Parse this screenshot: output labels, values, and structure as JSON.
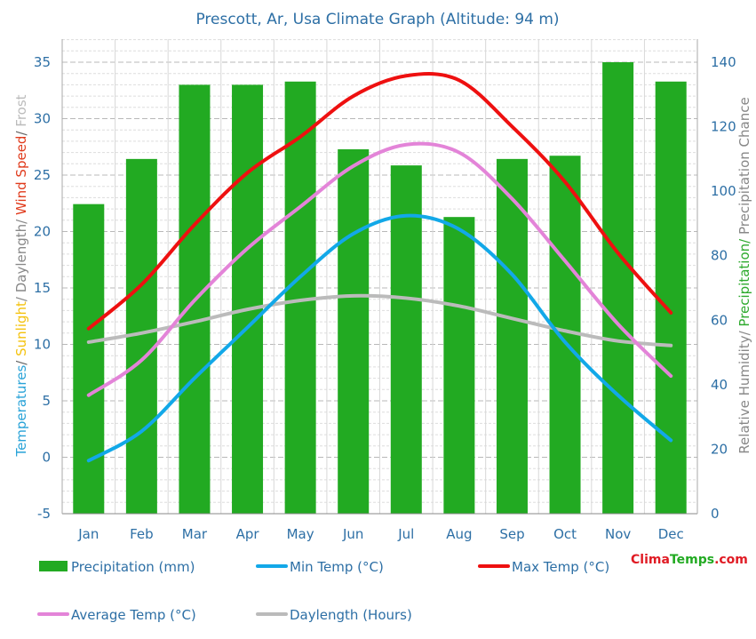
{
  "chart_data": {
    "type": "bar",
    "title": "Prescott, Ar, Usa Climate Graph (Altitude: 94 m)",
    "categories": [
      "Jan",
      "Feb",
      "Mar",
      "Apr",
      "May",
      "Jun",
      "Jul",
      "Aug",
      "Sep",
      "Oct",
      "Nov",
      "Dec"
    ],
    "ylabel_left": [
      {
        "text": "Temperatures",
        "color": "#29a3d8"
      },
      {
        "text": "/ ",
        "color": "#666666"
      },
      {
        "text": "Sunlight",
        "color": "#f4c20d"
      },
      {
        "text": "/ Daylength/ ",
        "color": "#888888"
      },
      {
        "text": "Wind Speed",
        "color": "#e03b1c"
      },
      {
        "text": "/ ",
        "color": "#666666"
      },
      {
        "text": "Frost",
        "color": "#bbbbbb"
      }
    ],
    "ylabel_right": [
      {
        "text": "Relative Humidity/ ",
        "color": "#888888"
      },
      {
        "text": "Precipitation/ ",
        "color": "#2eaa2e"
      },
      {
        "text": "Precipitation Chance",
        "color": "#888888"
      }
    ],
    "ylim_left": [
      -5,
      35
    ],
    "ylim_right": [
      0,
      140
    ],
    "yticks_left": [
      -5,
      0,
      5,
      10,
      15,
      20,
      25,
      30,
      35
    ],
    "yticks_right": [
      0,
      20,
      40,
      60,
      80,
      100,
      120,
      140
    ],
    "grid": true,
    "series": [
      {
        "name": "Precipitation (mm)",
        "kind": "bar",
        "axis": "right",
        "color": "#22aa22",
        "values": [
          96,
          110,
          133,
          133,
          134,
          113,
          108,
          92,
          110,
          111,
          140,
          134
        ]
      },
      {
        "name": "Min Temp (°C)",
        "kind": "line",
        "axis": "left",
        "color": "#12a8e8",
        "values": [
          -0.3,
          2.3,
          7.0,
          11.5,
          16.0,
          19.8,
          21.4,
          20.2,
          16.2,
          10.2,
          5.5,
          1.5
        ]
      },
      {
        "name": "Max Temp (°C)",
        "kind": "line",
        "axis": "left",
        "color": "#ee1010",
        "values": [
          11.4,
          15.3,
          20.6,
          25.2,
          28.4,
          32.0,
          33.8,
          33.4,
          29.3,
          24.4,
          18.1,
          12.8
        ]
      },
      {
        "name": "Average Temp (°C)",
        "kind": "line",
        "axis": "left",
        "color": "#e384d8",
        "values": [
          5.5,
          8.6,
          13.9,
          18.5,
          22.2,
          25.8,
          27.7,
          27.0,
          22.9,
          17.4,
          11.8,
          7.2
        ]
      },
      {
        "name": "Daylength (Hours)",
        "kind": "line",
        "axis": "left",
        "color": "#bbbbbb",
        "values": [
          10.2,
          11.0,
          12.0,
          13.1,
          13.9,
          14.3,
          14.1,
          13.4,
          12.3,
          11.2,
          10.3,
          9.9
        ]
      }
    ],
    "legend_placement": "bottom"
  },
  "brand": {
    "part1": "Clima",
    "part2": "Temps",
    "part3": ".com",
    "color1": "#e01b24",
    "color2": "#22aa22",
    "color3": "#e01b24"
  }
}
